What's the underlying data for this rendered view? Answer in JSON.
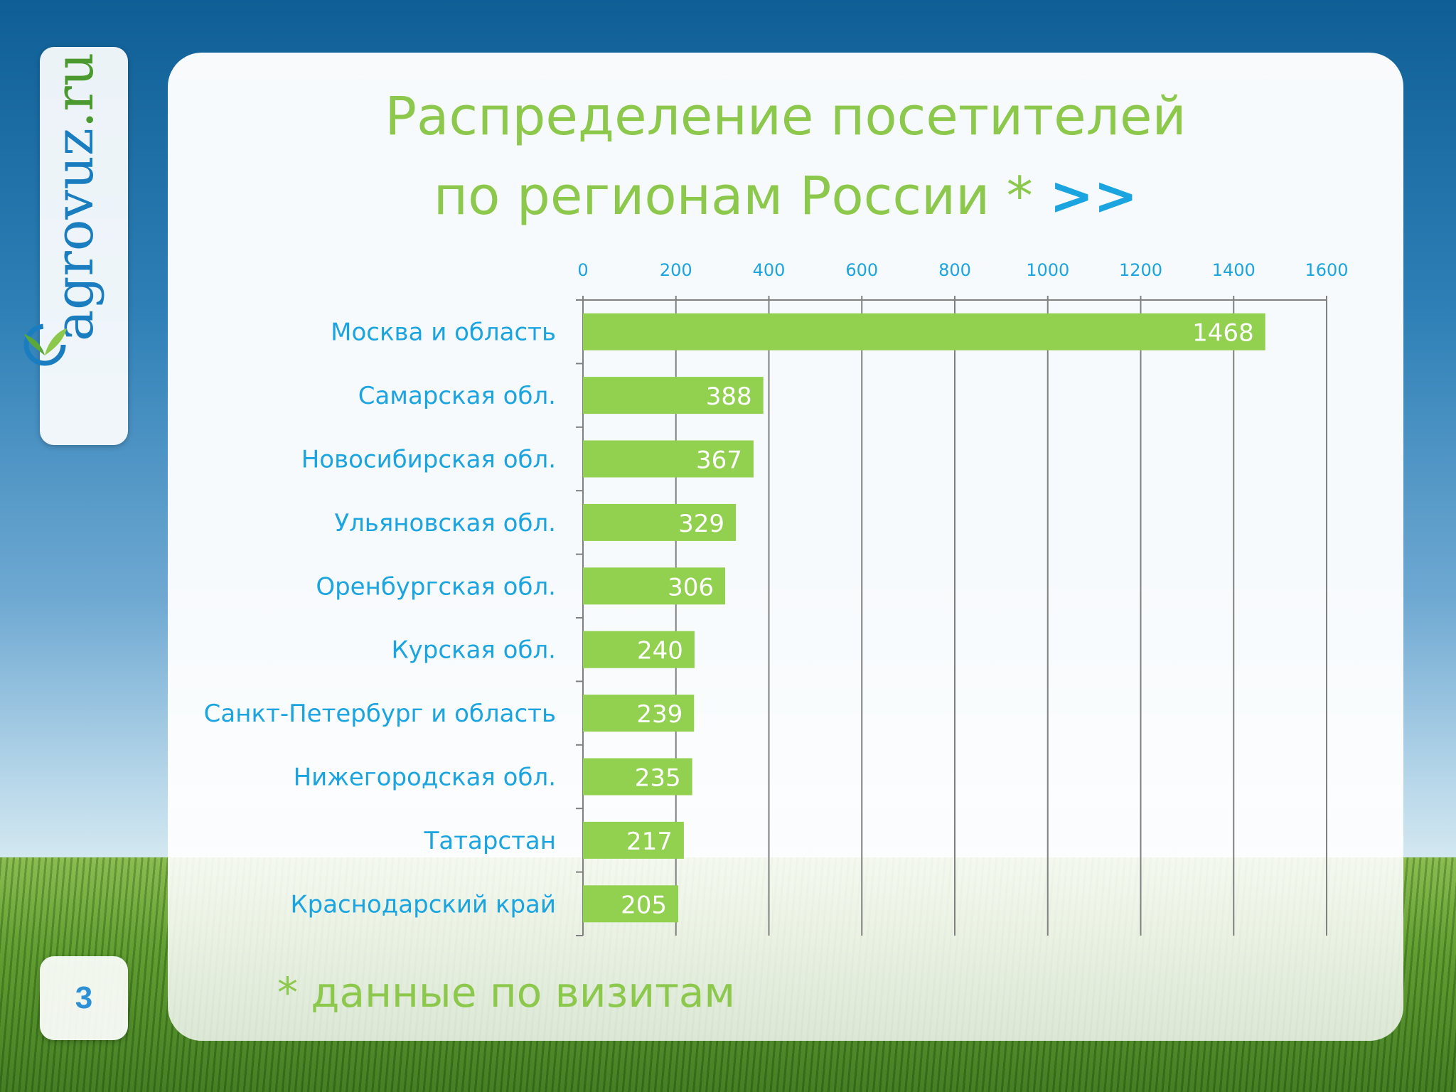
{
  "logo": {
    "part1": "agrovuz",
    "part2": ".ru",
    "mark": "sprout-logo-icon"
  },
  "page_number": "3",
  "title": {
    "line1": "Распределение посетителей",
    "line2": "по регионам России *",
    "link": ">>"
  },
  "footnote": "* данные по визитам",
  "colors": {
    "bar": "#92d050",
    "text_blue": "#1aa4e0",
    "title_green": "#8cc84b",
    "grid": "#808080"
  },
  "chart_data": {
    "type": "bar",
    "orientation": "horizontal",
    "categories": [
      "Москва и область",
      "Самарская обл.",
      "Новосибирская обл.",
      "Ульяновская обл.",
      "Оренбургская обл.",
      "Курская обл.",
      "Санкт-Петербург и область",
      "Нижегородская обл.",
      "Татарстан",
      "Краснодарский край"
    ],
    "values": [
      1468,
      388,
      367,
      329,
      306,
      240,
      239,
      235,
      217,
      205
    ],
    "data_labels": [
      "1468",
      "388",
      "367",
      "329",
      "306",
      "240",
      "239",
      "235",
      "217",
      "205"
    ],
    "xlim": [
      0,
      1600
    ],
    "xticks": [
      0,
      200,
      400,
      600,
      800,
      1000,
      1200,
      1400,
      1600
    ],
    "xtick_labels": [
      "0",
      "200",
      "400",
      "600",
      "800",
      "1000",
      "1200",
      "1400",
      "1600"
    ],
    "axis_position": "top",
    "grid": true,
    "legend": "none"
  }
}
